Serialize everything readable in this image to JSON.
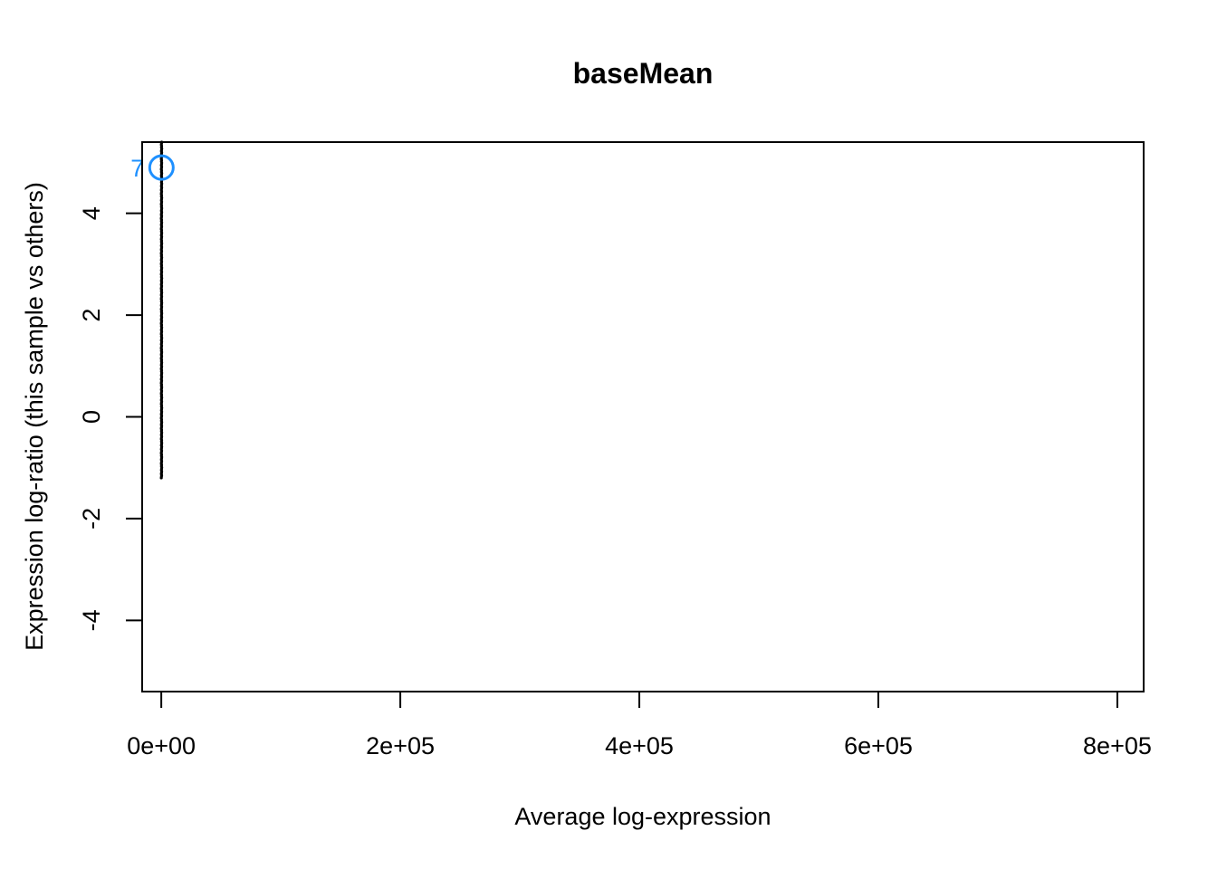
{
  "chart_data": {
    "type": "scatter",
    "title": "baseMean",
    "xlabel": "Average log-expression",
    "ylabel": "Expression log-ratio (this sample vs others)",
    "xlim": [
      -16000,
      822000
    ],
    "ylim": [
      -5.4,
      5.4
    ],
    "x_ticks": [
      {
        "value": 0,
        "label": "0e+00"
      },
      {
        "value": 200000,
        "label": "2e+05"
      },
      {
        "value": 400000,
        "label": "4e+05"
      },
      {
        "value": 600000,
        "label": "6e+05"
      },
      {
        "value": 800000,
        "label": "8e+05"
      }
    ],
    "y_ticks": [
      {
        "value": -4,
        "label": "-4"
      },
      {
        "value": -2,
        "label": "-2"
      },
      {
        "value": 0,
        "label": "0"
      },
      {
        "value": 2,
        "label": "2"
      },
      {
        "value": 4,
        "label": "4"
      }
    ],
    "grid": false,
    "series": [
      {
        "points_color": "#000000",
        "x_range": [
          0,
          400
        ],
        "y_range": [
          -1.2,
          5.4
        ]
      }
    ],
    "highlighted_point": {
      "x": 150,
      "y": 4.9,
      "label": "7",
      "color": "#1E90FF"
    }
  }
}
